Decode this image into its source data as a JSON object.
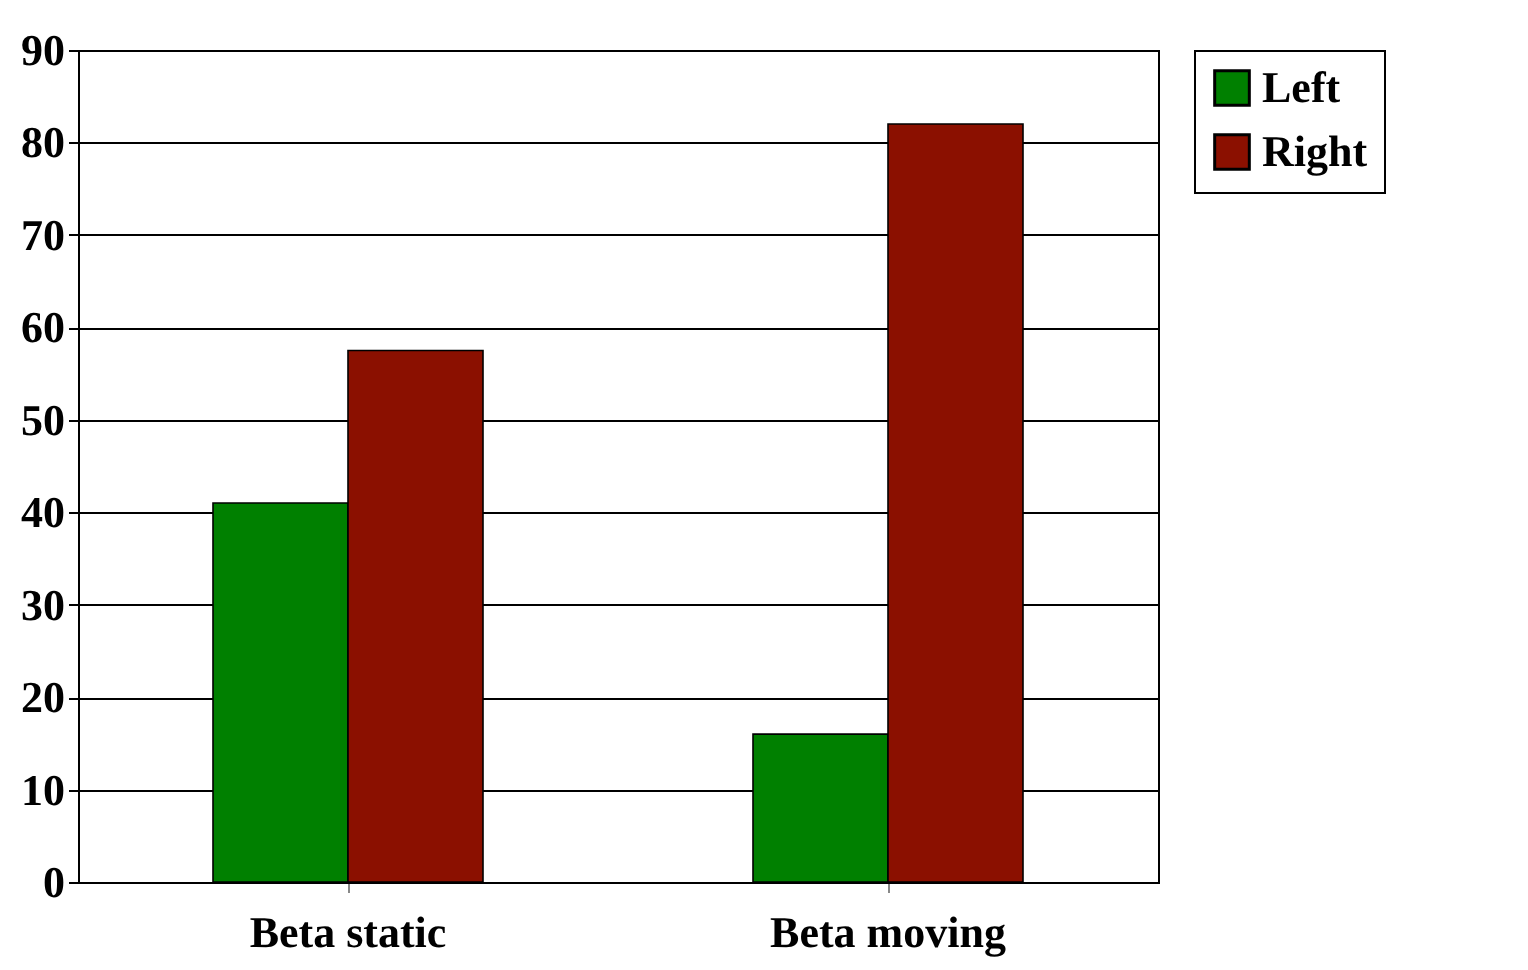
{
  "chart_data": {
    "type": "bar",
    "categories": [
      "Beta static",
      "Beta moving"
    ],
    "series": [
      {
        "name": "Left",
        "color": "#008000",
        "values": [
          41,
          16
        ]
      },
      {
        "name": "Right",
        "color": "#8b1000",
        "values": [
          57.5,
          82
        ]
      }
    ],
    "ylim": [
      0,
      90
    ],
    "yticks": [
      0,
      10,
      20,
      30,
      40,
      50,
      60,
      70,
      80,
      90
    ],
    "grid": "y",
    "legend": "right"
  }
}
